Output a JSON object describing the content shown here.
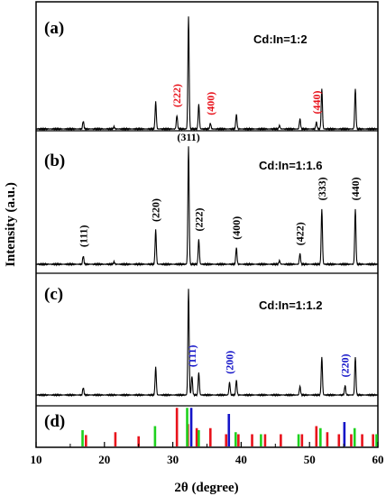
{
  "chart_data": {
    "type": "line",
    "xlabel": "2θ (degree)",
    "ylabel": "Intensity (a.u.)",
    "xlim": [
      10,
      60
    ],
    "xticks": [
      "10",
      "20",
      "30",
      "40",
      "50",
      "60"
    ],
    "panels": [
      {
        "letter": "(a)",
        "label": "Cd:In=1:2",
        "peaks": [
          {
            "x": 16.9,
            "h": 0.07
          },
          {
            "x": 21.4,
            "h": 0.02
          },
          {
            "x": 27.5,
            "h": 0.24
          },
          {
            "x": 30.6,
            "h": 0.12
          },
          {
            "x": 32.3,
            "h": 1.0
          },
          {
            "x": 33.8,
            "h": 0.22
          },
          {
            "x": 35.5,
            "h": 0.05
          },
          {
            "x": 39.3,
            "h": 0.13
          },
          {
            "x": 45.6,
            "h": 0.03
          },
          {
            "x": 48.6,
            "h": 0.09
          },
          {
            "x": 51.0,
            "h": 0.06
          },
          {
            "x": 51.8,
            "h": 0.36
          },
          {
            "x": 56.7,
            "h": 0.36
          }
        ],
        "annotations": [
          {
            "text": "(222)",
            "x": 30.6,
            "color": "#e8121b"
          },
          {
            "text": "(400)",
            "x": 35.5,
            "color": "#e8121b"
          },
          {
            "text": "(440)",
            "x": 51.0,
            "color": "#e8121b"
          }
        ]
      },
      {
        "letter": "(b)",
        "label": "Cd:In=1:1.6",
        "peaks": [
          {
            "x": 16.9,
            "h": 0.07
          },
          {
            "x": 21.4,
            "h": 0.02
          },
          {
            "x": 27.5,
            "h": 0.29
          },
          {
            "x": 32.3,
            "h": 1.0
          },
          {
            "x": 33.8,
            "h": 0.21
          },
          {
            "x": 39.3,
            "h": 0.14
          },
          {
            "x": 45.6,
            "h": 0.03
          },
          {
            "x": 48.6,
            "h": 0.09
          },
          {
            "x": 51.8,
            "h": 0.47
          },
          {
            "x": 56.7,
            "h": 0.47
          }
        ],
        "annotations": [
          {
            "text": "(111)",
            "x": 16.9,
            "color": "#000000"
          },
          {
            "text": "(220)",
            "x": 27.5,
            "color": "#000000"
          },
          {
            "text": "(311)",
            "x": 32.3,
            "color": "#000000"
          },
          {
            "text": "(222)",
            "x": 33.8,
            "color": "#000000"
          },
          {
            "text": "(400)",
            "x": 39.3,
            "color": "#000000"
          },
          {
            "text": "(422)",
            "x": 48.6,
            "color": "#000000"
          },
          {
            "text": "(333)",
            "x": 51.8,
            "color": "#000000"
          },
          {
            "text": "(440)",
            "x": 56.7,
            "color": "#000000"
          }
        ]
      },
      {
        "letter": "(c)",
        "label": "Cd:In=1:1.2",
        "peaks": [
          {
            "x": 16.9,
            "h": 0.07
          },
          {
            "x": 27.5,
            "h": 0.26
          },
          {
            "x": 32.3,
            "h": 1.0
          },
          {
            "x": 32.8,
            "h": 0.18
          },
          {
            "x": 33.8,
            "h": 0.21
          },
          {
            "x": 38.3,
            "h": 0.12
          },
          {
            "x": 39.3,
            "h": 0.14
          },
          {
            "x": 48.6,
            "h": 0.08
          },
          {
            "x": 51.8,
            "h": 0.36
          },
          {
            "x": 55.2,
            "h": 0.09
          },
          {
            "x": 56.7,
            "h": 0.36
          }
        ],
        "annotations": [
          {
            "text": "(111)",
            "x": 32.8,
            "color": "#1414c8"
          },
          {
            "text": "(200)",
            "x": 38.3,
            "color": "#1414c8"
          },
          {
            "text": "(220)",
            "x": 55.2,
            "color": "#1414c8"
          }
        ]
      }
    ],
    "reference": {
      "letter": "(d)",
      "red": [
        {
          "x": 17.3,
          "h": 0.28
        },
        {
          "x": 21.6,
          "h": 0.35
        },
        {
          "x": 25.0,
          "h": 0.25
        },
        {
          "x": 30.6,
          "h": 0.95
        },
        {
          "x": 32.2,
          "h": 0.55
        },
        {
          "x": 33.5,
          "h": 0.45
        },
        {
          "x": 35.5,
          "h": 0.45
        },
        {
          "x": 37.8,
          "h": 0.3
        },
        {
          "x": 39.6,
          "h": 0.3
        },
        {
          "x": 41.6,
          "h": 0.3
        },
        {
          "x": 43.5,
          "h": 0.3
        },
        {
          "x": 45.8,
          "h": 0.3
        },
        {
          "x": 48.9,
          "h": 0.3
        },
        {
          "x": 51.0,
          "h": 0.5
        },
        {
          "x": 52.6,
          "h": 0.35
        },
        {
          "x": 54.3,
          "h": 0.3
        },
        {
          "x": 56.1,
          "h": 0.3
        },
        {
          "x": 57.7,
          "h": 0.3
        },
        {
          "x": 59.3,
          "h": 0.3
        }
      ],
      "green": [
        {
          "x": 16.8,
          "h": 0.4
        },
        {
          "x": 27.4,
          "h": 0.5
        },
        {
          "x": 32.1,
          "h": 0.95
        },
        {
          "x": 33.8,
          "h": 0.4
        },
        {
          "x": 39.2,
          "h": 0.35
        },
        {
          "x": 42.9,
          "h": 0.3
        },
        {
          "x": 48.4,
          "h": 0.3
        },
        {
          "x": 51.6,
          "h": 0.45
        },
        {
          "x": 56.6,
          "h": 0.45
        },
        {
          "x": 59.8,
          "h": 0.3
        }
      ],
      "blue": [
        {
          "x": 32.7,
          "h": 0.95
        },
        {
          "x": 38.2,
          "h": 0.8
        },
        {
          "x": 55.1,
          "h": 0.6
        }
      ]
    },
    "colors": {
      "red": "#e8121b",
      "green": "#1ed11e",
      "blue": "#1414c8"
    }
  }
}
